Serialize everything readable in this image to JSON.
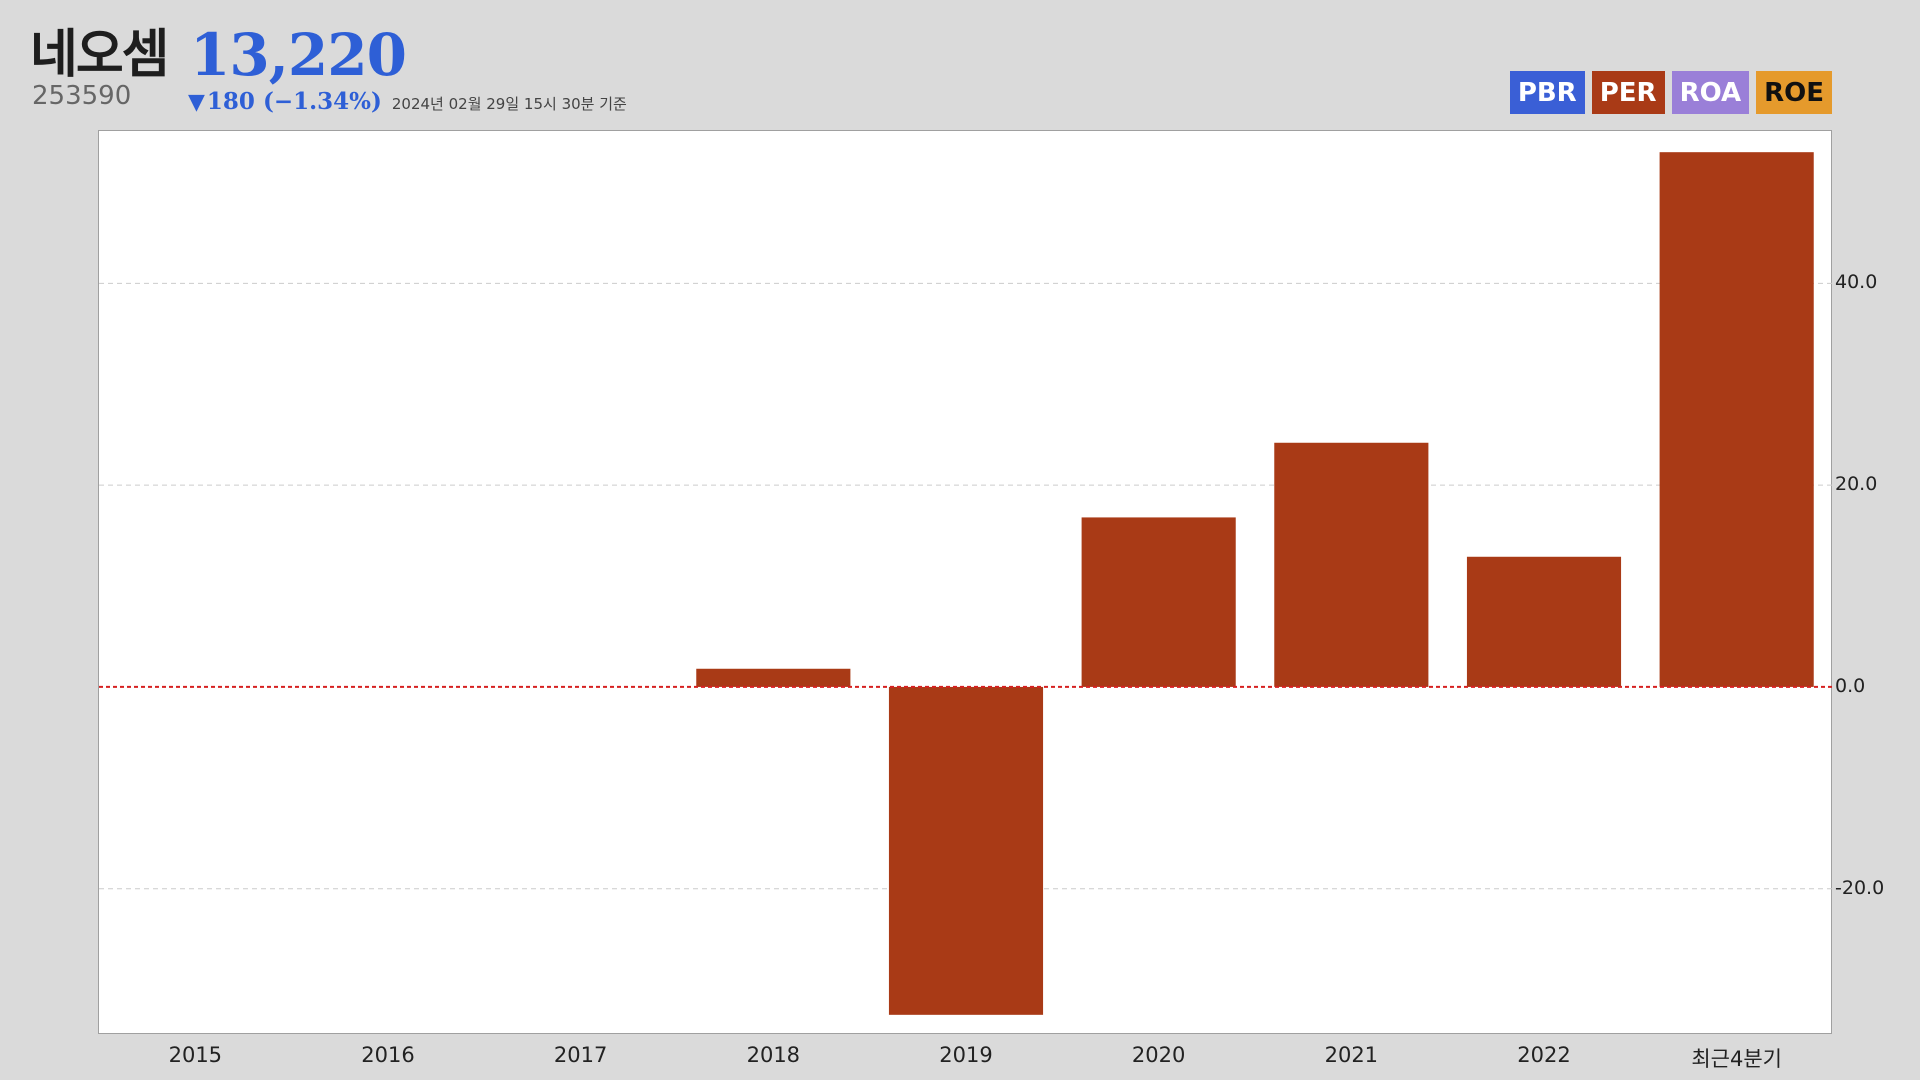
{
  "header": {
    "name": "네오셈",
    "price": "13,220",
    "code": "253590",
    "change_arrow": "▼",
    "change_text": "180 (−1.34%)",
    "timestamp": "2024년 02월 29일 15시 30분 기준"
  },
  "tabs": [
    {
      "label": "PBR",
      "bg": "#3a5fd6",
      "fg": "#ffffff",
      "active": false
    },
    {
      "label": "PER",
      "bg": "#a93a16",
      "fg": "#ffffff",
      "active": true
    },
    {
      "label": "ROA",
      "bg": "#9a7fd8",
      "fg": "#ffffff",
      "active": false
    },
    {
      "label": "ROE",
      "bg": "#e59a2c",
      "fg": "#111111",
      "active": false
    }
  ],
  "colors": {
    "bar": "#a93a16",
    "zero_line": "#d62020",
    "grid": "#cccccc",
    "accent_blue": "#2e5fd6"
  },
  "chart_data": {
    "type": "bar",
    "categories": [
      "2015",
      "2016",
      "2017",
      "2018",
      "2019",
      "2020",
      "2021",
      "2022",
      "최근4분기"
    ],
    "values": [
      null,
      null,
      null,
      1.8,
      -32.5,
      16.8,
      24.2,
      12.9,
      53.0
    ],
    "ylim": [
      -34.5,
      55.1
    ],
    "yticks": [
      40,
      20,
      0,
      -20
    ],
    "ytick_labels": [
      "40.0",
      "20.0",
      "0.0",
      "-20.0"
    ],
    "y_axis_side": "right",
    "grid": true,
    "zero_line": "dotted"
  }
}
